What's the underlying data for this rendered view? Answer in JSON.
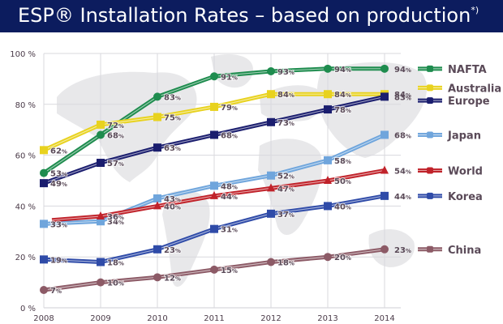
{
  "title": {
    "main": "ESP® Installation Rates – based on production",
    "footnote_mark": "*)"
  },
  "chart_data": {
    "type": "line",
    "title": "ESP® Installation Rates – based on production*)",
    "xlabel": "",
    "ylabel": "",
    "x": [
      "2008",
      "2009",
      "2010",
      "2011",
      "2012",
      "2013",
      "2014"
    ],
    "ylim": [
      0,
      100
    ],
    "yticks": [
      "0 %",
      "20 %",
      "40 %",
      "60 %",
      "80 %",
      "100 %"
    ],
    "ytick_values": [
      0,
      20,
      40,
      60,
      80,
      100
    ],
    "grid": true,
    "legend_position": "right",
    "value_suffix": "%",
    "series": [
      {
        "name": "NAFTA",
        "color": "#1e8c4e",
        "marker": "circle",
        "values": [
          53,
          68,
          83,
          91,
          93,
          94,
          94
        ]
      },
      {
        "name": "Australia",
        "color": "#e8d21e",
        "marker": "square",
        "values": [
          62,
          72,
          75,
          79,
          84,
          84,
          84
        ]
      },
      {
        "name": "Europe",
        "color": "#1a1d6e",
        "marker": "square",
        "values": [
          49,
          57,
          63,
          68,
          73,
          78,
          83
        ]
      },
      {
        "name": "Japan",
        "color": "#6fa5dc",
        "marker": "square",
        "values": [
          33,
          34,
          43,
          48,
          52,
          58,
          68
        ]
      },
      {
        "name": "World",
        "color": "#c0222a",
        "marker": "triangle",
        "values": [
          null,
          36,
          40,
          44,
          47,
          50,
          54
        ]
      },
      {
        "name": "Korea",
        "color": "#2f4ba8",
        "marker": "square",
        "values": [
          19,
          18,
          23,
          31,
          37,
          40,
          44
        ]
      },
      {
        "name": "China",
        "color": "#8c5a66",
        "marker": "circle",
        "values": [
          7,
          10,
          12,
          15,
          18,
          20,
          23
        ]
      }
    ]
  }
}
